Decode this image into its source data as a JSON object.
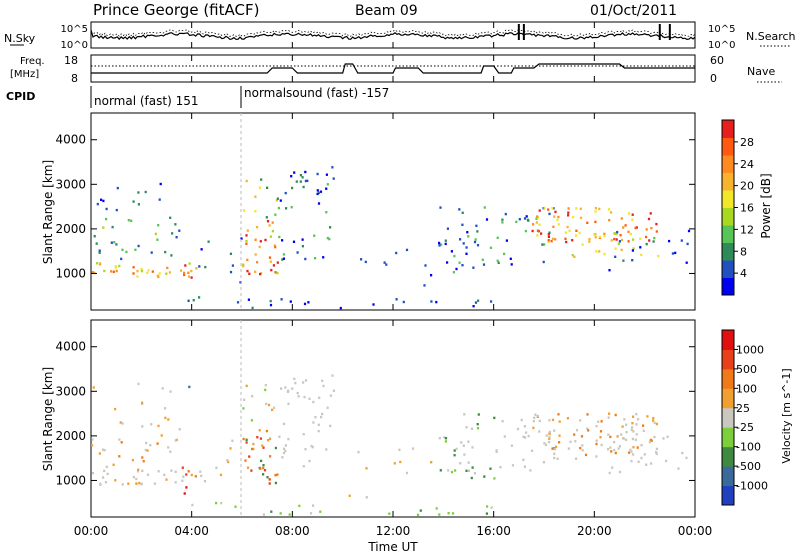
{
  "header": {
    "station": "Prince George (fitACF)",
    "beam": "Beam 09",
    "date": "01/Oct/2011"
  },
  "sky_panel": {
    "left_label": "N.Sky",
    "right_label": "N.Search",
    "left_ticks": [
      "10^5",
      "10^0"
    ],
    "right_ticks": [
      "10^5",
      "10^0"
    ]
  },
  "freq_panel": {
    "left_label_1": "Freq.",
    "left_label_2": "[MHz]",
    "right_label": "Nave",
    "left_ticks": [
      "18",
      "8"
    ],
    "right_ticks": [
      "60",
      "0"
    ]
  },
  "cpid": {
    "label": "CPID",
    "mode_1": "normal (fast) 151",
    "mode_2": "normalsound (fast) -157"
  },
  "chart_data": [
    {
      "type": "heatmap",
      "title": "",
      "xlabel": "",
      "ylabel": "Slant Range [km]",
      "yticks": [
        "1000",
        "2000",
        "3000",
        "4000"
      ],
      "ylim": [
        180,
        4600
      ],
      "colorbar": {
        "label": "Power [dB]",
        "ticks": [
          "28",
          "24",
          "20",
          "16",
          "12",
          "8",
          "4"
        ],
        "colors": [
          "#0000f0",
          "#2050c0",
          "#2e8b57",
          "#56c456",
          "#a8d820",
          "#f2e628",
          "#f7b22e",
          "#ff8a1f",
          "#ff5a10",
          "#e61e1e"
        ]
      }
    },
    {
      "type": "heatmap",
      "title": "",
      "xlabel": "Time UT",
      "ylabel": "Slant Range [km]",
      "yticks": [
        "1000",
        "2000",
        "3000",
        "4000"
      ],
      "ylim": [
        180,
        4600
      ],
      "xticks": [
        "00:00",
        "04:00",
        "08:00",
        "12:00",
        "16:00",
        "20:00",
        "00:00"
      ],
      "colorbar": {
        "label": "Velocity [m s^-1]",
        "ticks": [
          "1000",
          "500",
          "100",
          "25",
          "-25",
          "-100",
          "-500",
          "-1000"
        ],
        "colors": [
          "#2040c0",
          "#3a6a9a",
          "#3e8a40",
          "#7ccf3a",
          "#c8c8c0",
          "#f0a030",
          "#f07a18",
          "#e84018",
          "#e01010"
        ]
      }
    }
  ]
}
